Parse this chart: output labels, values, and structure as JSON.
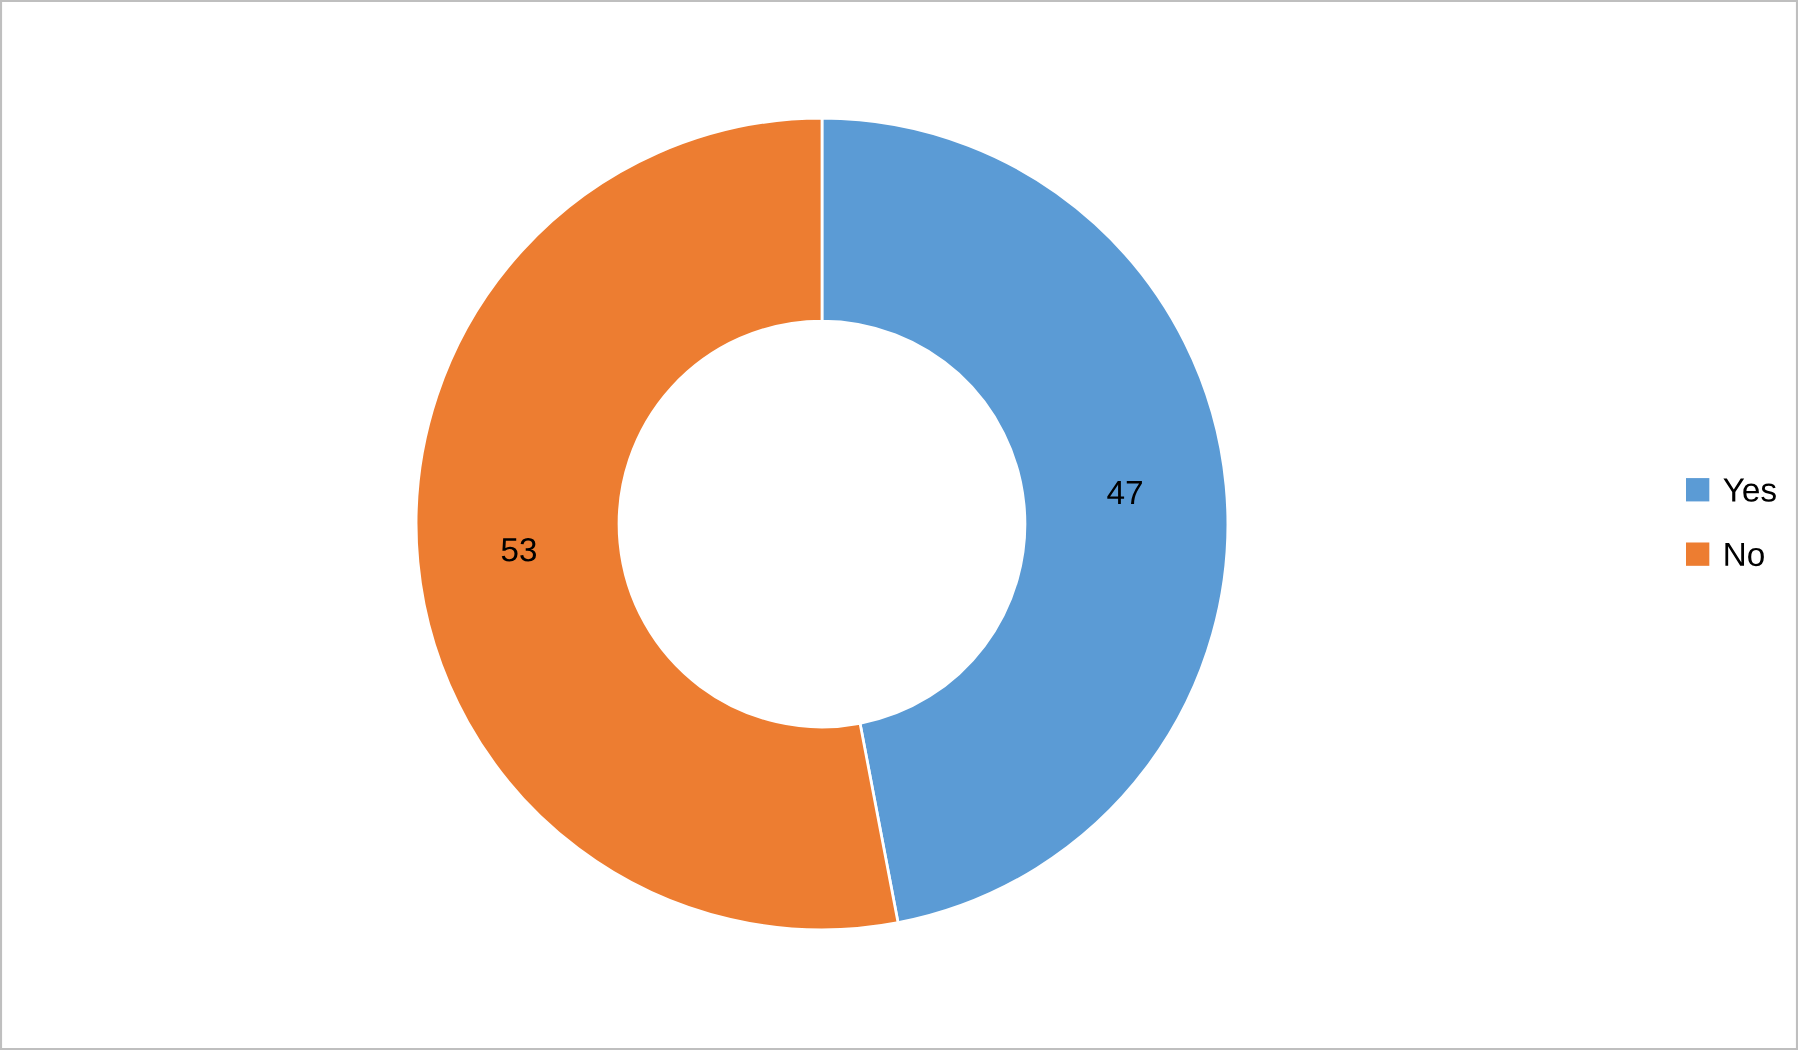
{
  "chart_data": {
    "type": "donut",
    "categories": [
      "Yes",
      "No"
    ],
    "values": [
      47,
      53
    ],
    "colors": [
      "#5b9bd5",
      "#ed7d31"
    ],
    "data_labels": true,
    "legend": "right"
  }
}
